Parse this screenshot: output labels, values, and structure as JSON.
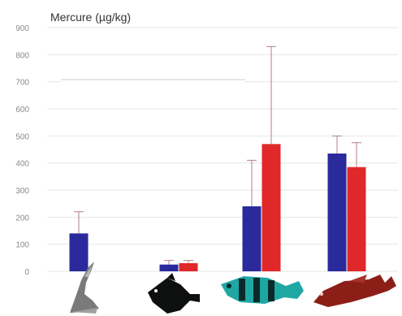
{
  "chart_data": {
    "type": "bar",
    "ylabel": "Mercure (µg/kg)",
    "ylim": [
      0,
      900
    ],
    "yticks": [
      0,
      100,
      200,
      300,
      400,
      500,
      600,
      700,
      800,
      900
    ],
    "grid": true,
    "categories": [
      "shellfish",
      "small-dark-fish",
      "striped-teal-fish",
      "red-fish"
    ],
    "series": [
      {
        "color": "#2a2a9c",
        "values": [
          140,
          25,
          240,
          435
        ],
        "errors": [
          80,
          15,
          170,
          65
        ]
      },
      {
        "color": "#e0282a",
        "values": [
          null,
          30,
          470,
          385
        ],
        "errors": [
          null,
          10,
          360,
          90
        ]
      }
    ],
    "category_icons": [
      "shellfish-icon",
      "small-dark-fish-icon",
      "striped-teal-fish-icon",
      "red-fish-icon"
    ]
  }
}
